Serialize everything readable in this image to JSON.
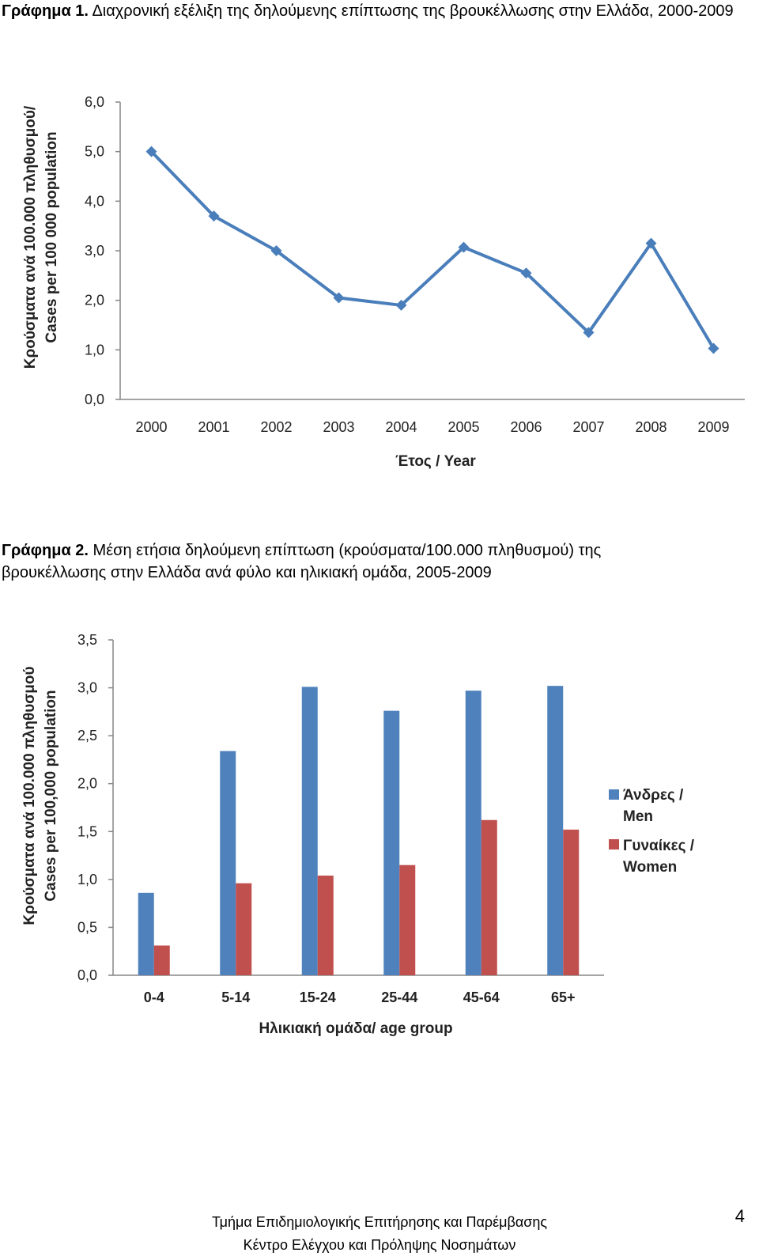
{
  "charts": [
    {
      "caption_bold": "Γράφημα 1.",
      "caption_text": " Διαχρονική εξέλιξη της δηλούμενης επίπτωσης της βρουκέλλωσης στην Ελλάδα, 2000-2009",
      "ylabel_line1": "Κρούσματα ανά 100.000 πληθυσμού/",
      "ylabel_line2": "Cases per 100 000 population",
      "xlabel": "Έτος / Year",
      "ytick_labels": [
        "0,0",
        "1,0",
        "2,0",
        "3,0",
        "4,0",
        "5,0",
        "6,0"
      ]
    },
    {
      "caption_bold": "Γράφημα 2.",
      "caption_text": " Μέση ετήσια δηλούμενη επίπτωση (κρούσματα/100.000 πληθυσμού) της βρουκέλλωσης στην Ελλάδα ανά φύλο και ηλικιακή ομάδα, 2005-2009",
      "ylabel_line1": "Κρούσματα ανά 100.000 πληθυσμού",
      "ylabel_line2": "Cases per 100,000 population",
      "xlabel": "Ηλικιακή ομάδα/ age group",
      "ytick_labels": [
        "0,0",
        "0,5",
        "1,0",
        "1,5",
        "2,0",
        "2,5",
        "3,0",
        "3,5"
      ],
      "legend": [
        {
          "line1": "Άνδρες /",
          "line2": "Men"
        },
        {
          "line1": "Γυναίκες /",
          "line2": "Women"
        }
      ]
    }
  ],
  "chart_data": [
    {
      "type": "line",
      "x": [
        "2000",
        "2001",
        "2002",
        "2003",
        "2004",
        "2005",
        "2006",
        "2007",
        "2008",
        "2009"
      ],
      "series": [
        {
          "values": [
            5.0,
            3.7,
            3.0,
            2.05,
            1.9,
            3.07,
            2.55,
            1.35,
            3.15,
            1.03
          ],
          "color": "#4a7ebb"
        }
      ],
      "ylim": [
        0,
        6
      ],
      "ystep": 1,
      "grid": false
    },
    {
      "type": "bar",
      "categories": [
        "0-4",
        "5-14",
        "15-24",
        "25-44",
        "45-64",
        "65+"
      ],
      "series": [
        {
          "name": "Άνδρες / Men",
          "values": [
            0.86,
            2.34,
            3.01,
            2.76,
            2.97,
            3.02
          ],
          "color": "#4f81bd"
        },
        {
          "name": "Γυναίκες / Women",
          "values": [
            0.31,
            0.96,
            1.04,
            1.15,
            1.62,
            1.52
          ],
          "color": "#c0504d"
        }
      ],
      "ylim": [
        0,
        3.5
      ],
      "ystep": 0.5,
      "grid": false,
      "legend_position": "right"
    }
  ],
  "footer": {
    "line1": "Τμήμα Επιδημιολογικής Επιτήρησης και Παρέμβασης",
    "line2": "Κέντρο Ελέγχου και Πρόληψης Νοσημάτων",
    "page_number": "4"
  }
}
